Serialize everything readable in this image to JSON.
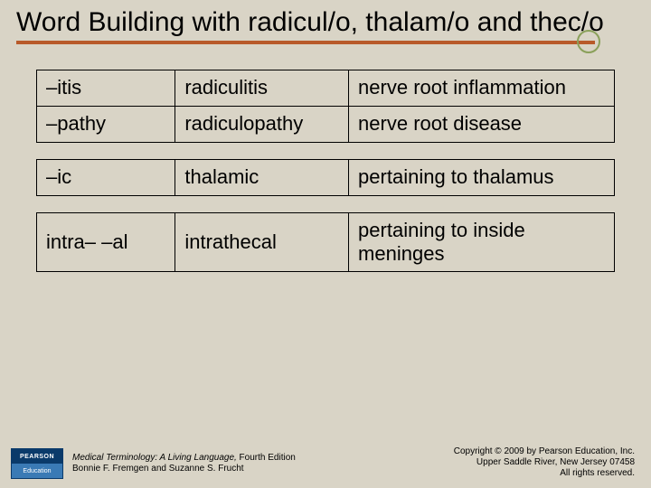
{
  "title": "Word Building with radicul/o, thalam/o and thec/o",
  "tables": [
    {
      "rows": [
        {
          "suffix": "–itis",
          "word": "radiculitis",
          "definition": "nerve root inflammation"
        },
        {
          "suffix": "–pathy",
          "word": "radiculopathy",
          "definition": "nerve root disease"
        }
      ]
    },
    {
      "rows": [
        {
          "suffix": "–ic",
          "word": "thalamic",
          "definition": "pertaining to thalamus"
        }
      ]
    },
    {
      "rows": [
        {
          "suffix": "intra–  –al",
          "word": "intrathecal",
          "definition": "pertaining to inside meninges"
        }
      ]
    }
  ],
  "footer": {
    "logo_top": "PEARSON",
    "logo_bottom": "Education",
    "book_title": "Medical Terminology: A Living Language,",
    "book_edition": " Fourth Edition",
    "authors": "Bonnie F. Fremgen and Suzanne S. Frucht",
    "copyright_line1": "Copyright © 2009 by Pearson Education, Inc.",
    "copyright_line2": "Upper Saddle River, New Jersey 07458",
    "copyright_line3": "All rights reserved."
  },
  "styling": {
    "background": "#d9d4c6",
    "rule_color": "#b85a2a",
    "dot_border": "#8aa05a",
    "title_fontsize": 30,
    "cell_fontsize": 22,
    "border_color": "#000000",
    "col_widths_pct": [
      24,
      30,
      46
    ]
  }
}
